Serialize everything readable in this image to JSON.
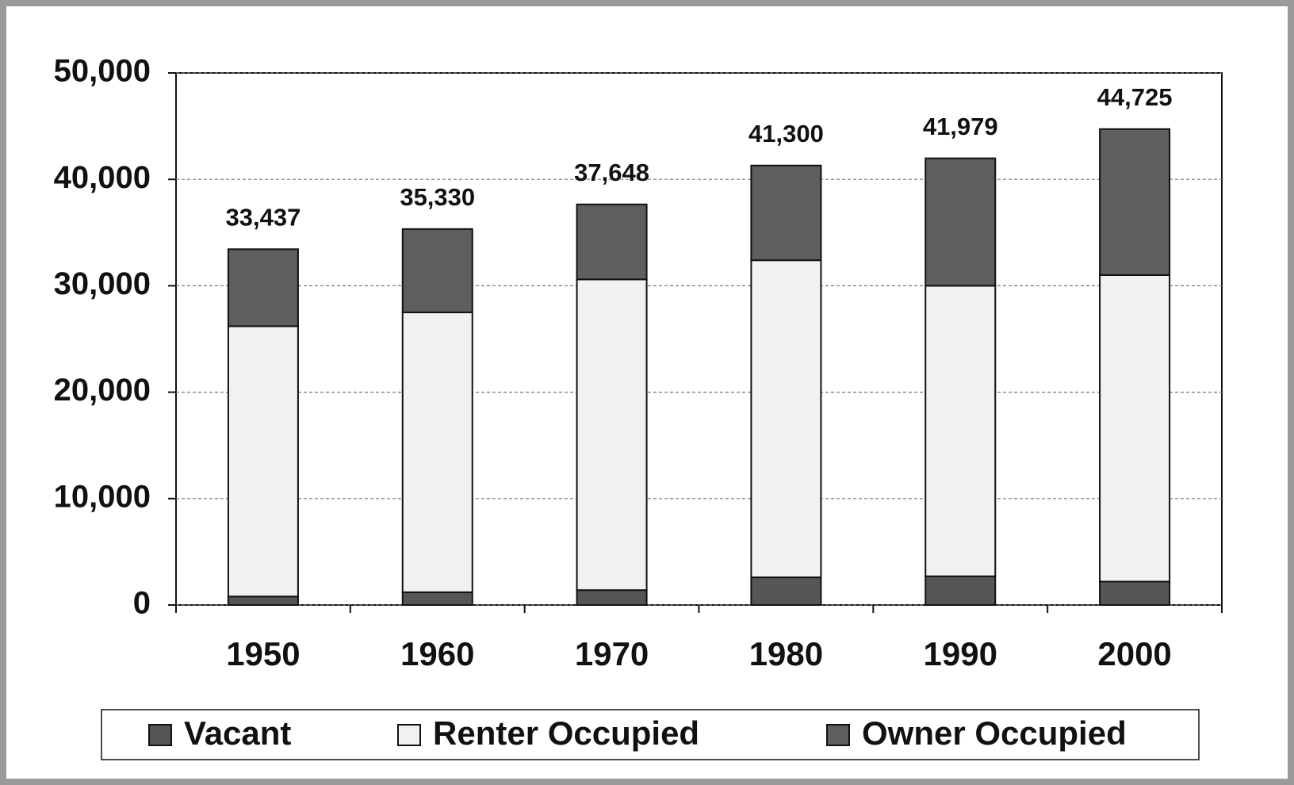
{
  "chart_data": {
    "type": "stacked_bar",
    "categories": [
      "1950",
      "1960",
      "1970",
      "1980",
      "1990",
      "2000"
    ],
    "series": [
      {
        "name": "Vacant",
        "color": "#565656",
        "values": [
          800,
          1200,
          1400,
          2600,
          2700,
          2200
        ]
      },
      {
        "name": "Renter Occupied",
        "color": "#f1f1f1",
        "values": [
          25400,
          26300,
          29200,
          29800,
          27300,
          28800
        ]
      },
      {
        "name": "Owner Occupied",
        "color": "#5e5e5e",
        "values": [
          7237,
          7830,
          7048,
          8900,
          11979,
          13725
        ]
      }
    ],
    "totals": [
      33437,
      35330,
      37648,
      41300,
      41979,
      44725
    ],
    "total_labels": [
      "33,437",
      "35,330",
      "37,648",
      "41,300",
      "41,979",
      "44,725"
    ],
    "ylim": [
      0,
      50000
    ],
    "yticks": [
      0,
      {
        "value": 10000,
        "label": "10,000"
      },
      {
        "value": 20000,
        "label": "20,000"
      },
      {
        "value": 30000,
        "label": "30,000"
      },
      {
        "value": 40000,
        "label": "40,000"
      },
      {
        "value": 50000,
        "label": "50,000"
      }
    ],
    "grid": true,
    "legend": "bottom"
  }
}
